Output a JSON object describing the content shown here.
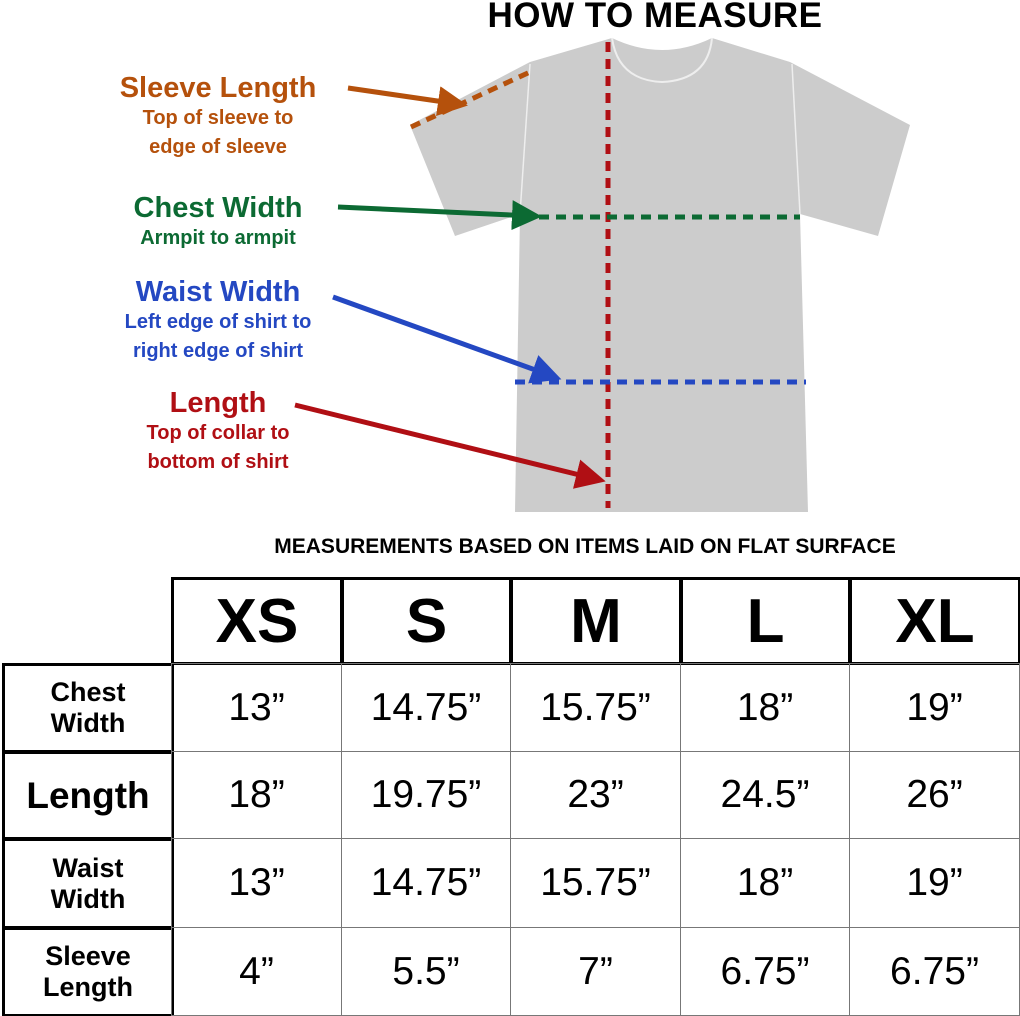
{
  "title": "HOW TO MEASURE",
  "colors": {
    "sleeve": "#b5510c",
    "chest": "#0c6a33",
    "waist": "#2448c2",
    "length": "#b00f14",
    "shirt": "#cccccc"
  },
  "labels": {
    "sleeve": {
      "heading": "Sleeve Length",
      "line1": "Top of sleeve to",
      "line2": "edge of sleeve"
    },
    "chest": {
      "heading": "Chest Width",
      "line1": "Armpit to armpit"
    },
    "waist": {
      "heading": "Waist Width",
      "line1": "Left edge of shirt to",
      "line2": "right edge of shirt"
    },
    "length": {
      "heading": "Length",
      "line1": "Top of collar to",
      "line2": "bottom of shirt"
    }
  },
  "table": {
    "caption": "MEASUREMENTS BASED ON ITEMS LAID ON FLAT SURFACE",
    "sizes": [
      "XS",
      "S",
      "M",
      "L",
      "XL"
    ],
    "rows": [
      {
        "label1": "Chest",
        "label2": "Width",
        "values": [
          "13”",
          "14.75”",
          "15.75”",
          "18”",
          "19”"
        ]
      },
      {
        "label1": "Length",
        "label2": "",
        "values": [
          "18”",
          "19.75”",
          "23”",
          "24.5”",
          "26”"
        ]
      },
      {
        "label1": "Waist",
        "label2": "Width",
        "values": [
          "13”",
          "14.75”",
          "15.75”",
          "18”",
          "19”"
        ]
      },
      {
        "label1": "Sleeve",
        "label2": "Length",
        "values": [
          "4”",
          "5.5”",
          "7”",
          "6.75”",
          "6.75”"
        ]
      }
    ]
  }
}
